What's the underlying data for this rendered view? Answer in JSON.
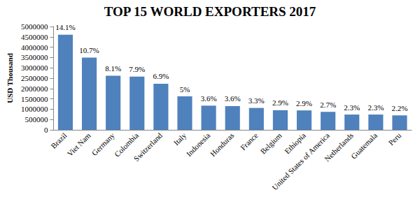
{
  "chart_data": {
    "type": "bar",
    "title": "TOP 15 WORLD EXPORTERS 2017",
    "y_label": "USD Thousand",
    "categories": [
      "Brazil",
      "Viet Nam",
      "Germany",
      "Colombia",
      "Switzerland",
      "Italy",
      "Indonesia",
      "Honduras",
      "France",
      "Belgium",
      "Ethiopia",
      "United States of America",
      "Netherlands",
      "Guatemala",
      "Peru"
    ],
    "values": [
      4600000,
      3500000,
      2620000,
      2580000,
      2230000,
      1620000,
      1170000,
      1150000,
      1060000,
      950000,
      940000,
      870000,
      740000,
      740000,
      700000
    ],
    "share_labels": [
      "14.1%",
      "10.7%",
      "8.1%",
      "7.9%",
      "6.9%",
      "5%",
      "3.6%",
      "3.6%",
      "3.3%",
      "2.9%",
      "2.9%",
      "2.7%",
      "2.3%",
      "2.3%",
      "2.2%"
    ],
    "color": "#4f81bd",
    "ylim": [
      0,
      5000000
    ],
    "yticks": [
      0,
      500000,
      1000000,
      1500000,
      2000000,
      2500000,
      3000000,
      3500000,
      4000000,
      4500000,
      5000000
    ],
    "grid": false
  }
}
